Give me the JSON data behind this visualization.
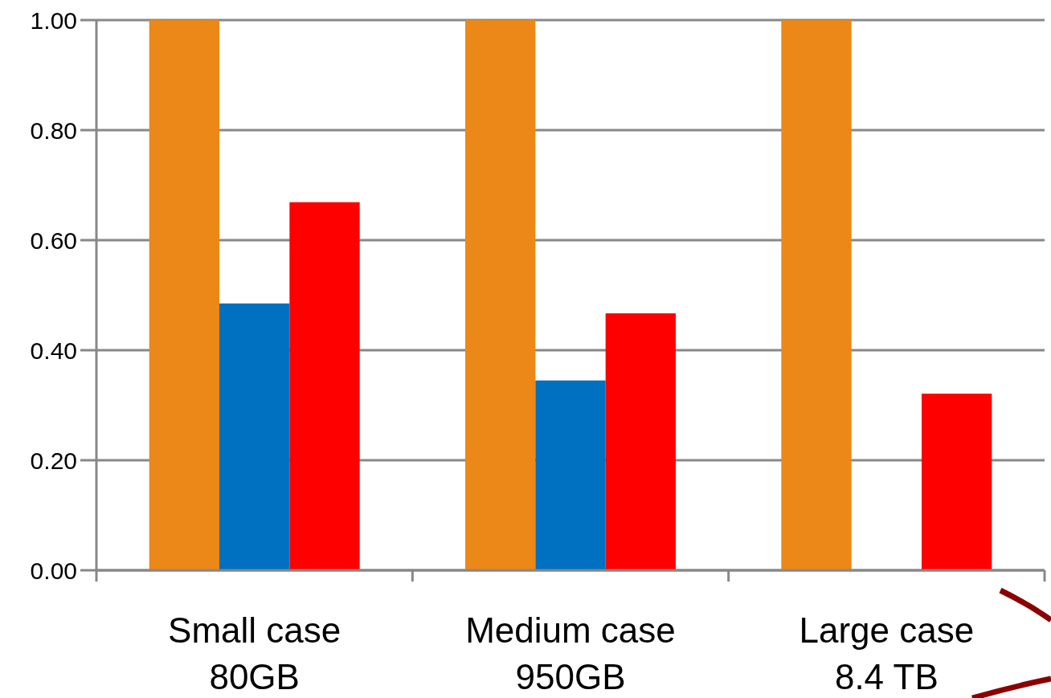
{
  "chart_data": {
    "type": "bar",
    "categories": [
      "Small case\n80GB",
      "Medium case\n950GB",
      "Large case\n8.4 TB"
    ],
    "series": [
      {
        "color": "#ec8817",
        "values": [
          1.0,
          1.0,
          1.0
        ]
      },
      {
        "color": "#0070c0",
        "values": [
          0.485,
          0.345,
          null
        ]
      },
      {
        "color": "#ff0000",
        "values": [
          0.669,
          0.467,
          0.321
        ]
      }
    ],
    "ylim": [
      0,
      1
    ],
    "yticks": [
      {
        "value": 0,
        "label": "0.00"
      },
      {
        "value": 0.2,
        "label": "0.20"
      },
      {
        "value": 0.4,
        "label": "0.40"
      },
      {
        "value": 0.6,
        "label": "0.60"
      },
      {
        "value": 0.8,
        "label": "0.80"
      },
      {
        "value": 1,
        "label": "1.00"
      }
    ],
    "grid": "y"
  }
}
